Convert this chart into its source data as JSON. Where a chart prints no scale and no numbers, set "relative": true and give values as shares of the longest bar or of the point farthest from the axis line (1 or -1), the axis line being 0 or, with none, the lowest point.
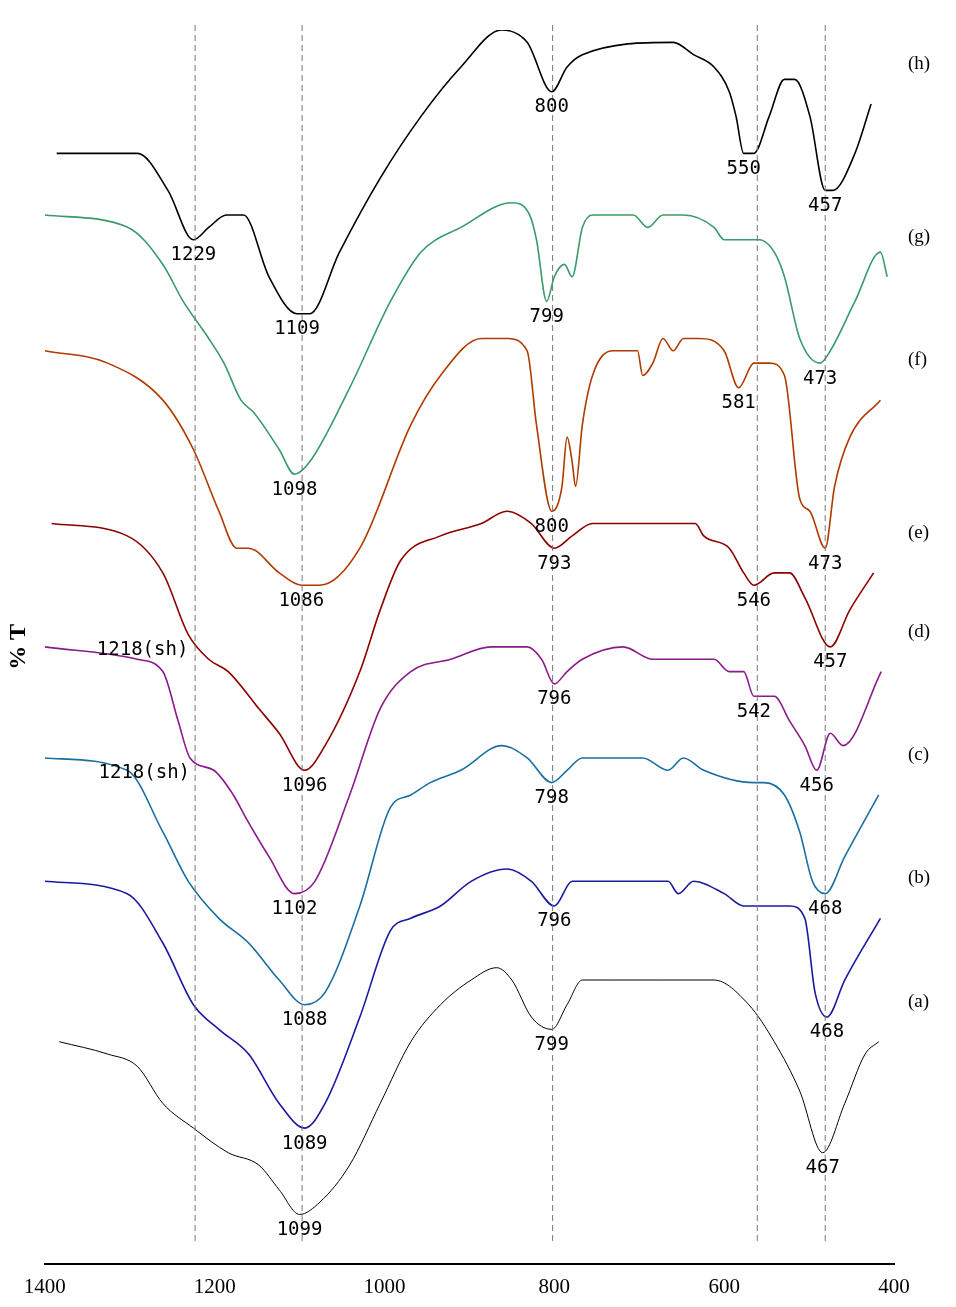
{
  "chart_data": {
    "type": "line",
    "relative": true,
    "ylabel": "% T",
    "xlim": [
      1400,
      400
    ],
    "xticks": [
      1400,
      1200,
      1000,
      800,
      600,
      400
    ],
    "grid": false,
    "legend": false,
    "marker": "none",
    "line_style": "solid",
    "series": [
      {
        "name": "(h)",
        "color": "#000000",
        "x": [
          1386,
          1291,
          1255,
          1225,
          1207,
          1186,
          1166,
          1136,
          1103,
          1088,
          1053,
          1005,
          957,
          910,
          862,
          832,
          803,
          785,
          767,
          660,
          636,
          612,
          594,
          586,
          577,
          565,
          547,
          529,
          517,
          499,
          481,
          472,
          446,
          427
        ],
        "values": [
          0.9,
          0.9,
          0.87,
          0.83,
          0.84,
          0.85,
          0.85,
          0.8,
          0.77,
          0.77,
          0.82,
          0.88,
          0.93,
          0.97,
          1.0,
          0.99,
          0.95,
          0.97,
          0.98,
          0.99,
          0.98,
          0.97,
          0.95,
          0.93,
          0.9,
          0.9,
          0.93,
          0.96,
          0.96,
          0.93,
          0.87,
          0.87,
          0.9,
          0.94
        ]
      },
      {
        "name": "(g)",
        "color": "#3a9a6a",
        "x": [
          1400,
          1302,
          1261,
          1237,
          1207,
          1189,
          1169,
          1154,
          1124,
          1106,
          1088,
          1041,
          993,
          957,
          910,
          850,
          829,
          821,
          809,
          800,
          788,
          779,
          767,
          755,
          707,
          690,
          672,
          648,
          612,
          600,
          577,
          559,
          541,
          529,
          511,
          487,
          475,
          446,
          416,
          408
        ],
        "values": [
          0.85,
          0.84,
          0.81,
          0.78,
          0.75,
          0.73,
          0.7,
          0.69,
          0.66,
          0.64,
          0.65,
          0.71,
          0.78,
          0.82,
          0.84,
          0.86,
          0.85,
          0.83,
          0.78,
          0.8,
          0.81,
          0.8,
          0.84,
          0.85,
          0.85,
          0.84,
          0.85,
          0.85,
          0.84,
          0.83,
          0.83,
          0.83,
          0.82,
          0.8,
          0.75,
          0.73,
          0.74,
          0.78,
          0.82,
          0.8
        ]
      },
      {
        "name": "(f)",
        "color": "#b03a00",
        "x": [
          1400,
          1326,
          1261,
          1225,
          1195,
          1174,
          1160,
          1124,
          1098,
          1076,
          1029,
          969,
          934,
          886,
          856,
          832,
          821,
          803,
          791,
          785,
          779,
          775,
          767,
          755,
          731,
          702,
          696,
          684,
          672,
          660,
          648,
          630,
          600,
          583,
          565,
          547,
          529,
          511,
          499,
          481,
          470,
          452,
          416
        ],
        "values": [
          0.74,
          0.73,
          0.7,
          0.66,
          0.61,
          0.58,
          0.58,
          0.56,
          0.55,
          0.55,
          0.58,
          0.68,
          0.72,
          0.75,
          0.75,
          0.74,
          0.68,
          0.61,
          0.63,
          0.67,
          0.65,
          0.63,
          0.68,
          0.72,
          0.74,
          0.74,
          0.72,
          0.73,
          0.75,
          0.74,
          0.75,
          0.75,
          0.74,
          0.71,
          0.73,
          0.73,
          0.72,
          0.62,
          0.61,
          0.58,
          0.63,
          0.67,
          0.7
        ]
      },
      {
        "name": "(e)",
        "color": "#8b0000",
        "x": [
          1392,
          1303,
          1261,
          1231,
          1207,
          1184,
          1148,
          1124,
          1094,
          1070,
          1029,
          1005,
          981,
          934,
          886,
          856,
          827,
          800,
          779,
          755,
          719,
          690,
          672,
          648,
          634,
          624,
          594,
          577,
          565,
          541,
          523,
          505,
          475,
          452,
          424
        ],
        "values": [
          0.6,
          0.59,
          0.56,
          0.51,
          0.49,
          0.48,
          0.45,
          0.43,
          0.4,
          0.42,
          0.48,
          0.53,
          0.57,
          0.59,
          0.6,
          0.61,
          0.6,
          0.58,
          0.59,
          0.6,
          0.6,
          0.6,
          0.6,
          0.6,
          0.6,
          0.59,
          0.58,
          0.56,
          0.55,
          0.56,
          0.56,
          0.54,
          0.5,
          0.53,
          0.56
        ]
      },
      {
        "name": "(d)",
        "color": "#8b1a8b",
        "x": [
          1400,
          1291,
          1261,
          1243,
          1229,
          1201,
          1178,
          1162,
          1136,
          1106,
          1082,
          1041,
          1005,
          969,
          922,
          874,
          832,
          815,
          800,
          785,
          767,
          719,
          684,
          666,
          648,
          630,
          612,
          594,
          577,
          565,
          541,
          523,
          505,
          491,
          475,
          460,
          415
        ],
        "values": [
          0.5,
          0.49,
          0.48,
          0.44,
          0.41,
          0.4,
          0.38,
          0.36,
          0.33,
          0.3,
          0.31,
          0.38,
          0.45,
          0.48,
          0.49,
          0.5,
          0.5,
          0.49,
          0.47,
          0.48,
          0.49,
          0.5,
          0.49,
          0.49,
          0.49,
          0.49,
          0.49,
          0.48,
          0.48,
          0.46,
          0.46,
          0.44,
          0.42,
          0.4,
          0.43,
          0.42,
          0.48
        ]
      },
      {
        "name": "(c)",
        "color": "#1a6fa0",
        "x": [
          1400,
          1303,
          1261,
          1231,
          1195,
          1160,
          1124,
          1094,
          1070,
          1029,
          993,
          969,
          946,
          910,
          862,
          832,
          803,
          785,
          767,
          719,
          696,
          666,
          648,
          624,
          565,
          553,
          529,
          511,
          496,
          481,
          458,
          418
        ],
        "values": [
          0.41,
          0.4,
          0.35,
          0.31,
          0.28,
          0.26,
          0.23,
          0.21,
          0.22,
          0.29,
          0.37,
          0.38,
          0.39,
          0.4,
          0.42,
          0.41,
          0.39,
          0.4,
          0.41,
          0.41,
          0.41,
          0.4,
          0.41,
          0.4,
          0.39,
          0.39,
          0.38,
          0.35,
          0.31,
          0.3,
          0.33,
          0.38
        ]
      },
      {
        "name": "(b)",
        "color": "#1a1aa0",
        "x": [
          1400,
          1303,
          1261,
          1225,
          1195,
          1160,
          1124,
          1094,
          1070,
          1029,
          993,
          969,
          934,
          898,
          856,
          827,
          800,
          779,
          755,
          707,
          678,
          666,
          654,
          636,
          600,
          577,
          559,
          523,
          505,
          493,
          479,
          458,
          416
        ],
        "values": [
          0.31,
          0.3,
          0.26,
          0.21,
          0.19,
          0.17,
          0.13,
          0.11,
          0.13,
          0.2,
          0.27,
          0.28,
          0.29,
          0.31,
          0.32,
          0.31,
          0.29,
          0.31,
          0.31,
          0.31,
          0.31,
          0.31,
          0.3,
          0.31,
          0.3,
          0.29,
          0.29,
          0.29,
          0.28,
          0.22,
          0.2,
          0.23,
          0.28
        ]
      },
      {
        "name": "(a)",
        "color": "#000000",
        "x": [
          1383,
          1326,
          1291,
          1261,
          1225,
          1184,
          1148,
          1124,
          1100,
          1076,
          1041,
          1005,
          969,
          934,
          898,
          868,
          850,
          827,
          803,
          785,
          767,
          731,
          672,
          612,
          571,
          541,
          511,
          484,
          458,
          434,
          418
        ],
        "values": [
          0.18,
          0.17,
          0.16,
          0.13,
          0.11,
          0.09,
          0.08,
          0.06,
          0.04,
          0.05,
          0.08,
          0.13,
          0.18,
          0.21,
          0.23,
          0.24,
          0.23,
          0.2,
          0.19,
          0.21,
          0.23,
          0.23,
          0.23,
          0.23,
          0.21,
          0.18,
          0.14,
          0.09,
          0.13,
          0.17,
          0.18
        ]
      }
    ],
    "ref_lines": [
      {
        "axis": "x",
        "value": 1223,
        "color": "#777777",
        "line_style": "dashed"
      },
      {
        "axis": "x",
        "value": 1097,
        "color": "#777777",
        "line_style": "dashed"
      },
      {
        "axis": "x",
        "value": 802,
        "color": "#777777",
        "line_style": "dashed"
      },
      {
        "axis": "x",
        "value": 561,
        "color": "#777777",
        "line_style": "dashed"
      },
      {
        "axis": "x",
        "value": 481,
        "color": "#777777",
        "line_style": "dashed"
      }
    ],
    "annotations": [
      {
        "text": "1229",
        "x": 1225,
        "y": 0.83
      },
      {
        "text": "1109",
        "x": 1103,
        "y": 0.77
      },
      {
        "text": "800",
        "x": 803,
        "y": 0.95
      },
      {
        "text": "550",
        "x": 577,
        "y": 0.9
      },
      {
        "text": "457",
        "x": 481,
        "y": 0.87
      },
      {
        "text": "1098",
        "x": 1106,
        "y": 0.64
      },
      {
        "text": "799",
        "x": 809,
        "y": 0.78
      },
      {
        "text": "473",
        "x": 487,
        "y": 0.73
      },
      {
        "text": "1086",
        "x": 1098,
        "y": 0.55
      },
      {
        "text": "800",
        "x": 803,
        "y": 0.61
      },
      {
        "text": "581",
        "x": 583,
        "y": 0.71
      },
      {
        "text": "473",
        "x": 481,
        "y": 0.58
      },
      {
        "text": "1218(sh)",
        "x": 1231,
        "y": 0.51
      },
      {
        "text": "1096",
        "x": 1094,
        "y": 0.4
      },
      {
        "text": "793",
        "x": 800,
        "y": 0.58
      },
      {
        "text": "546",
        "x": 565,
        "y": 0.55
      },
      {
        "text": "457",
        "x": 475,
        "y": 0.5
      },
      {
        "text": "1218(sh)",
        "x": 1229,
        "y": 0.41
      },
      {
        "text": "1102",
        "x": 1106,
        "y": 0.3
      },
      {
        "text": "796",
        "x": 800,
        "y": 0.47
      },
      {
        "text": "542",
        "x": 565,
        "y": 0.46
      },
      {
        "text": "456",
        "x": 491,
        "y": 0.4
      },
      {
        "text": "1088",
        "x": 1094,
        "y": 0.21
      },
      {
        "text": "798",
        "x": 803,
        "y": 0.39
      },
      {
        "text": "468",
        "x": 481,
        "y": 0.3
      },
      {
        "text": "1089",
        "x": 1094,
        "y": 0.11
      },
      {
        "text": "796",
        "x": 800,
        "y": 0.29
      },
      {
        "text": "468",
        "x": 479,
        "y": 0.2
      },
      {
        "text": "1099",
        "x": 1100,
        "y": 0.04
      },
      {
        "text": "799",
        "x": 803,
        "y": 0.19
      },
      {
        "text": "467",
        "x": 484,
        "y": 0.09
      }
    ]
  }
}
